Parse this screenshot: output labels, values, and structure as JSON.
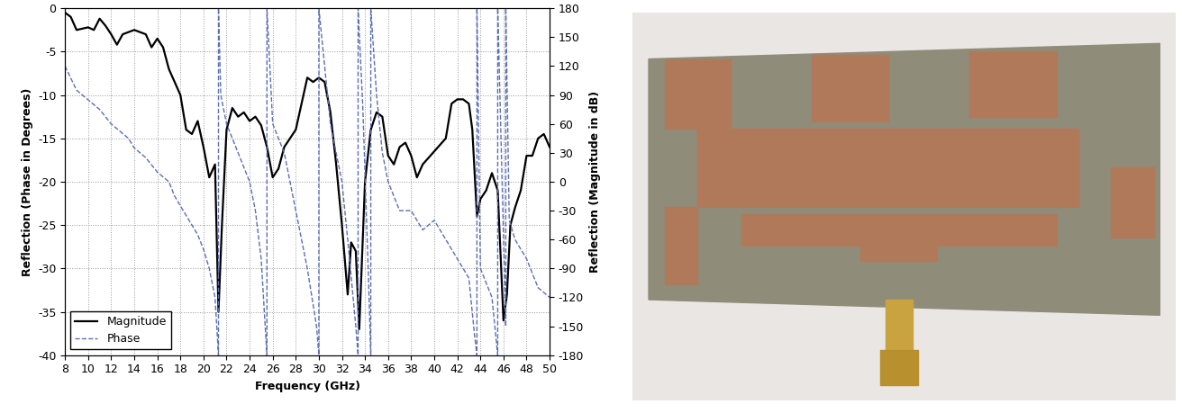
{
  "chart_data": {
    "type": "line",
    "x_label": "Frequency (GHz)",
    "y_label": "Reflection (Phase in Degrees)",
    "y2_label": "Reflection (Magnitude in dB)",
    "xlim": [
      8,
      50
    ],
    "xticks": [
      8,
      10,
      12,
      14,
      16,
      18,
      20,
      22,
      24,
      26,
      28,
      30,
      32,
      34,
      36,
      38,
      40,
      42,
      44,
      46,
      48,
      50
    ],
    "ylim": [
      -40,
      0
    ],
    "yticks": [
      -40,
      -35,
      -30,
      -25,
      -20,
      -15,
      -10,
      -5,
      0
    ],
    "y2lim": [
      -180,
      180
    ],
    "y2ticks": [
      -180,
      -150,
      -120,
      -90,
      -60,
      -30,
      0,
      30,
      60,
      90,
      120,
      150,
      180
    ],
    "grid": true,
    "legend": "lower left",
    "series": [
      {
        "name": "Magnitude",
        "color": "#000000",
        "line_style": "solid",
        "x": [
          8,
          8.5,
          9,
          10,
          10.5,
          11,
          11.5,
          12,
          12.5,
          13,
          14,
          15,
          15.5,
          16,
          16.5,
          17,
          18,
          18.5,
          19,
          19.5,
          20,
          20.5,
          21,
          21.3,
          21.6,
          22,
          22.5,
          23,
          23.5,
          24,
          24.5,
          25,
          25.5,
          26,
          26.5,
          27,
          28,
          28.5,
          29,
          29.5,
          30,
          30.5,
          31,
          31.5,
          32,
          32.5,
          32.8,
          33.2,
          33.5,
          34,
          34.5,
          35,
          35.5,
          36,
          36.5,
          37,
          37.5,
          38,
          38.5,
          39,
          40,
          41,
          41.5,
          42,
          42.5,
          43,
          43.3,
          43.7,
          44,
          44.5,
          45,
          45.5,
          46,
          46.3,
          46.6,
          47,
          47.5,
          48,
          48.5,
          49,
          49.5,
          50
        ],
        "values": [
          -0.5,
          -1,
          -2.5,
          -2.2,
          -2.5,
          -1.2,
          -2,
          -3,
          -4.2,
          -3,
          -2.5,
          -3,
          -4.5,
          -3.5,
          -4.5,
          -7,
          -10,
          -14,
          -14.5,
          -13,
          -16,
          -19.5,
          -18,
          -35,
          -25,
          -14,
          -11.5,
          -12.5,
          -12,
          -13,
          -12.5,
          -13.5,
          -16,
          -19.5,
          -18.5,
          -16,
          -14,
          -11,
          -8,
          -8.5,
          -8,
          -8.5,
          -12,
          -18,
          -25,
          -33,
          -27,
          -28,
          -37,
          -20,
          -14,
          -12,
          -12.5,
          -17,
          -18,
          -16,
          -15.5,
          -17,
          -19.5,
          -18,
          -16.5,
          -15,
          -11,
          -10.5,
          -10.5,
          -11,
          -14,
          -24,
          -22,
          -21,
          -19,
          -21,
          -36,
          -33,
          -25,
          -23,
          -21,
          -17,
          -17,
          -15,
          -14.5,
          -16
        ]
      },
      {
        "name": "Phase",
        "color": "#5b6fb5",
        "line_style": "dashed",
        "axis": "y2",
        "x": [
          8,
          9,
          10,
          11,
          12,
          13.5,
          14,
          15,
          16,
          17,
          17.5,
          18,
          18.5,
          19,
          19.5,
          20,
          20.5,
          21,
          21.3,
          21.3,
          21.5,
          22,
          23,
          24,
          24.5,
          25,
          25.5,
          25.5,
          26,
          27,
          28,
          29,
          29.8,
          30,
          30,
          30.5,
          31,
          32,
          32.5,
          33.2,
          33.4,
          33.4,
          33.8,
          34.3,
          34.5,
          34.5,
          35,
          35.5,
          36,
          37,
          38,
          39,
          40,
          41,
          42,
          43,
          43.5,
          43.7,
          43.7,
          44,
          45,
          45.5,
          45.5,
          46.2,
          46.2,
          46.5,
          47,
          48,
          49,
          50
        ],
        "values": [
          120,
          95,
          85,
          75,
          60,
          45,
          35,
          25,
          10,
          0,
          -15,
          -25,
          -35,
          -45,
          -55,
          -70,
          -90,
          -120,
          -180,
          180,
          90,
          60,
          30,
          0,
          -30,
          -80,
          -180,
          180,
          60,
          30,
          -30,
          -90,
          -150,
          -180,
          180,
          120,
          60,
          0,
          -60,
          -150,
          -180,
          180,
          80,
          -100,
          -180,
          180,
          90,
          30,
          0,
          -30,
          -30,
          -50,
          -40,
          -60,
          -80,
          -100,
          -160,
          -180,
          180,
          -90,
          -120,
          -180,
          180,
          -150,
          180,
          -40,
          -60,
          -80,
          -110,
          -120
        ]
      }
    ]
  }
}
